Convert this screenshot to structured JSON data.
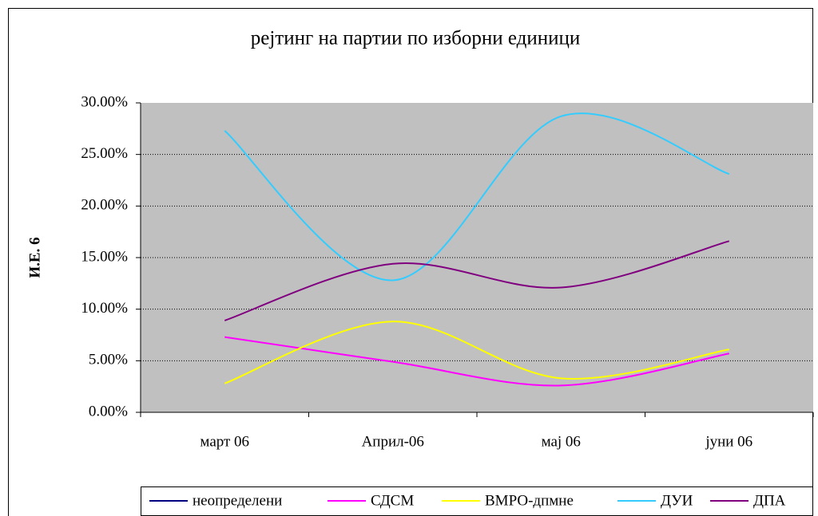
{
  "chart_data": {
    "type": "line",
    "title": "рејтинг на партии по изборни единици",
    "ylabel": "И.Е. 6",
    "categories": [
      "март 06",
      "Април-06",
      "мај 06",
      "јуни 06"
    ],
    "series": [
      {
        "name": "неопределени",
        "color": "#000080",
        "values": [
          null,
          null,
          null,
          null
        ]
      },
      {
        "name": "СДСМ",
        "color": "#ff00ff",
        "values": [
          7.3,
          4.9,
          2.6,
          5.7
        ]
      },
      {
        "name": "ВМРО-дпмне",
        "color": "#ffff00",
        "values": [
          2.8,
          8.8,
          3.3,
          6.1
        ]
      },
      {
        "name": "ДУИ",
        "color": "#33ccff",
        "values": [
          27.3,
          12.8,
          28.7,
          23.1
        ]
      },
      {
        "name": "ДПА",
        "color": "#800080",
        "values": [
          8.9,
          14.4,
          12.1,
          16.6
        ]
      }
    ],
    "ylim": [
      0,
      30
    ],
    "yticks": [
      {
        "value": 0,
        "label": "0.00%"
      },
      {
        "value": 5,
        "label": "5.00%"
      },
      {
        "value": 10,
        "label": "10.00%"
      },
      {
        "value": 15,
        "label": "15.00%"
      },
      {
        "value": 20,
        "label": "20.00%"
      },
      {
        "value": 25,
        "label": "25.00%"
      },
      {
        "value": 30,
        "label": "30.00%"
      }
    ],
    "grid": true,
    "smooth": true,
    "legend": "bottom",
    "plot_background": "#c0c0c0"
  }
}
